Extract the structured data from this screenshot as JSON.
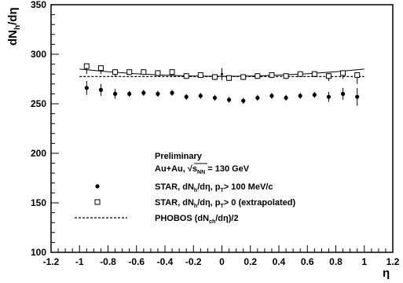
{
  "chart_data": {
    "type": "scatter",
    "ylabel": "dN_h/dη",
    "xlabel": "η",
    "xlim": [
      -1.2,
      1.2
    ],
    "ylim": [
      100,
      350
    ],
    "x_ticks": [
      "-1.2",
      "-1",
      "-0.8",
      "-0.6",
      "-0.4",
      "-0.2",
      "0",
      "0.2",
      "0.4",
      "0.6",
      "0.8",
      "1",
      "1.2"
    ],
    "y_ticks": [
      "100",
      "150",
      "200",
      "250",
      "300",
      "350"
    ],
    "annotations": [
      "Preliminary",
      "Au+Au, √s_NN = 130 GeV"
    ],
    "series": [
      {
        "name": "STAR, dN_h/dη, p_T > 100 MeV/c",
        "marker": "filled-circle",
        "x": [
          -0.95,
          -0.85,
          -0.75,
          -0.65,
          -0.55,
          -0.45,
          -0.35,
          -0.25,
          -0.15,
          -0.05,
          0.05,
          0.15,
          0.25,
          0.35,
          0.45,
          0.55,
          0.65,
          0.75,
          0.85,
          0.95
        ],
        "y": [
          266,
          264,
          260,
          260,
          261,
          260,
          261,
          257,
          258,
          256,
          254,
          253,
          256,
          258,
          256,
          258,
          259,
          257,
          260,
          257
        ],
        "yerr": [
          7,
          6,
          5,
          3,
          3,
          3,
          3,
          3,
          3,
          3,
          3,
          3,
          3,
          3,
          3,
          3,
          3,
          5,
          6,
          9
        ]
      },
      {
        "name": "STAR, dN_h/dη, p_T > 0 (extrapolated)",
        "marker": "open-square",
        "x": [
          -0.95,
          -0.85,
          -0.75,
          -0.65,
          -0.55,
          -0.45,
          -0.35,
          -0.25,
          -0.15,
          -0.05,
          0.05,
          0.15,
          0.25,
          0.35,
          0.45,
          0.55,
          0.65,
          0.75,
          0.85,
          0.95
        ],
        "y": [
          288,
          286,
          282,
          282,
          282,
          281,
          282,
          278,
          279,
          277,
          276,
          277,
          278,
          279,
          278,
          280,
          280,
          278,
          281,
          279
        ],
        "yerr": [
          8,
          6,
          5,
          3,
          3,
          3,
          3,
          3,
          3,
          3,
          3,
          3,
          3,
          3,
          3,
          3,
          3,
          5,
          6,
          9
        ]
      },
      {
        "name": "PHOBOS (dN_ch/dη)/2",
        "line": "dashed",
        "x": [
          -1,
          1
        ],
        "y": [
          277.5,
          277.5
        ]
      }
    ],
    "fit_curve": {
      "x": [
        -1,
        -0.8,
        -0.6,
        -0.4,
        -0.2,
        0,
        0.2,
        0.4,
        0.6,
        0.8,
        1
      ],
      "y": [
        285,
        282.3,
        280.3,
        278.9,
        278.0,
        277.7,
        278.0,
        278.9,
        280.3,
        282.3,
        285
      ]
    },
    "extra_points": [
      {
        "x": 0,
        "y": 280,
        "yerr": 6,
        "marker": "filled-circle-small"
      }
    ],
    "legend": [
      {
        "marker": "filled-circle",
        "label_parts": [
          "STAR, dN",
          "h",
          "/dη, p",
          "T",
          "> 100 MeV/c"
        ]
      },
      {
        "marker": "open-square",
        "label_parts": [
          "STAR, dN",
          "h",
          "/dη, p",
          "T",
          "> 0 (extrapolated)"
        ]
      },
      {
        "marker": "dashed-line",
        "label_parts": [
          "PHOBOS (dN",
          "ch",
          "/dη)/2"
        ]
      }
    ],
    "legend_placement": "bottom-center",
    "grid": false,
    "colors": {
      "markers": "#000000",
      "axes": "#000000",
      "background": "#ffffff"
    }
  }
}
